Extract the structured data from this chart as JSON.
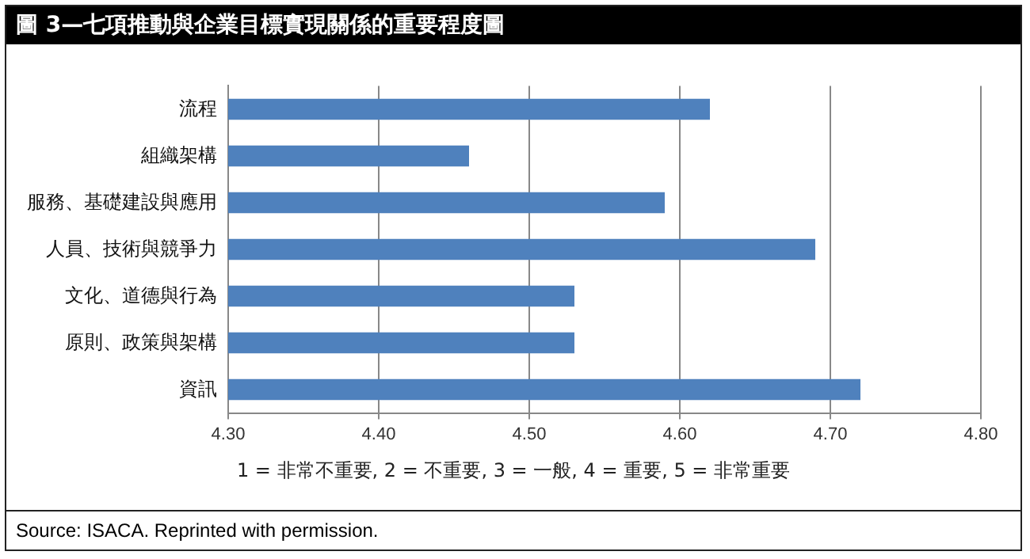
{
  "chart_data": {
    "type": "bar",
    "orientation": "horizontal",
    "title": "圖 3—七項推動與企業目標實現關係的重要程度圖",
    "categories": [
      "流程",
      "組織架構",
      "服務、基礎建設與應用",
      "人員、技術與競爭力",
      "文化、道德與行為",
      "原則、政策與架構",
      "資訊"
    ],
    "values": [
      4.62,
      4.46,
      4.59,
      4.69,
      4.53,
      4.53,
      4.72
    ],
    "color": "#4f81bd",
    "xlim": [
      4.3,
      4.8
    ],
    "xticks": [
      {
        "value": 4.3,
        "label": "4.30"
      },
      {
        "value": 4.4,
        "label": "4.40"
      },
      {
        "value": 4.5,
        "label": "4.50"
      },
      {
        "value": 4.6,
        "label": "4.60"
      },
      {
        "value": 4.7,
        "label": "4.70"
      },
      {
        "value": 4.8,
        "label": "4.80"
      }
    ],
    "grid": "x",
    "legend": false,
    "annotations": [
      "1 = 非常不重要, 2 = 不重要, 3 = 一般, 4 = 重要, 5 = 非常重要",
      "Source:  ISACA. Reprinted with permission."
    ]
  }
}
